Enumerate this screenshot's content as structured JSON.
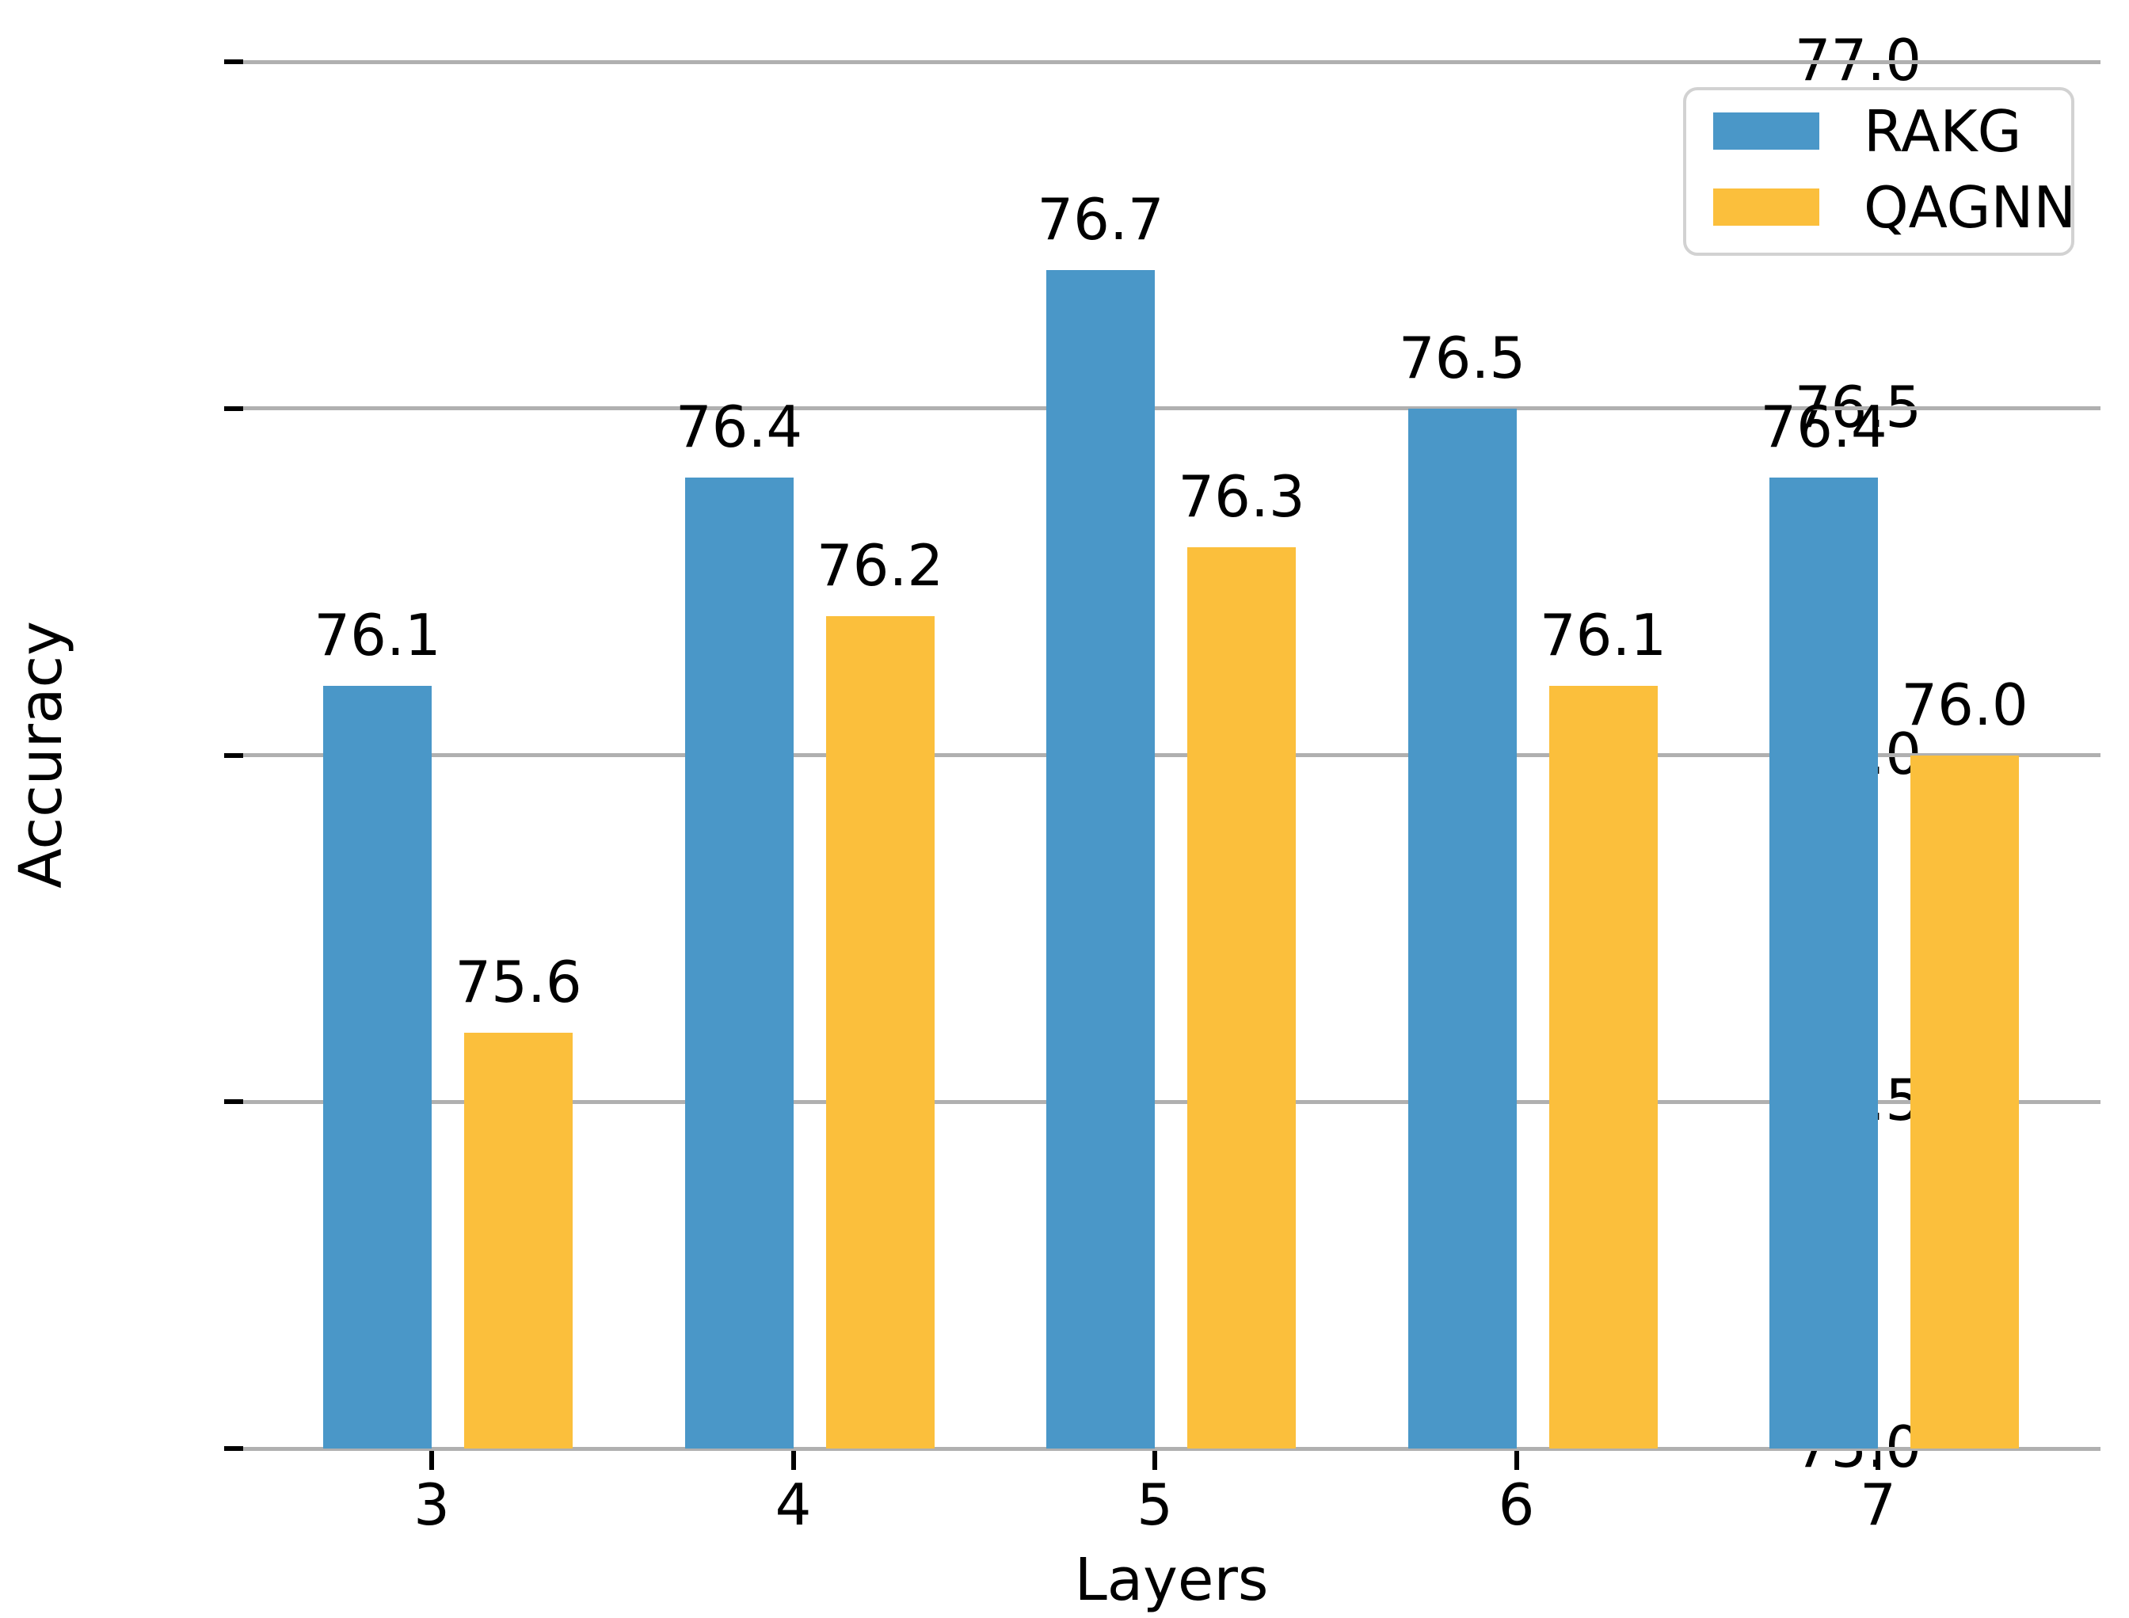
{
  "chart_data": {
    "type": "bar",
    "title": "",
    "xlabel": "Layers",
    "ylabel": "Accuracy",
    "categories": [
      "3",
      "4",
      "5",
      "6",
      "7"
    ],
    "series": [
      {
        "name": "RAKG",
        "color": "#4A97C8",
        "values": [
          76.1,
          76.4,
          76.7,
          76.5,
          76.4
        ],
        "labels": [
          "76.1",
          "76.4",
          "76.7",
          "76.5",
          "76.4"
        ]
      },
      {
        "name": "QAGNN",
        "color": "#FBBF3C",
        "values": [
          75.6,
          76.2,
          76.3,
          76.1,
          76.0
        ],
        "labels": [
          "75.6",
          "76.2",
          "76.3",
          "76.1",
          "76.0"
        ]
      }
    ],
    "ylim": [
      75.0,
      77.0
    ],
    "yticks": [
      75.0,
      75.5,
      76.0,
      76.5,
      77.0
    ],
    "ytick_labels": [
      "75.0",
      "75.5",
      "76.0",
      "76.5",
      "77.0"
    ],
    "grid": "horizontal",
    "gridline_color": "#b0b0b0",
    "tick_color": "#000000",
    "text_color": "#000000",
    "legend_position": "upper right",
    "background_color": "#ffffff"
  }
}
